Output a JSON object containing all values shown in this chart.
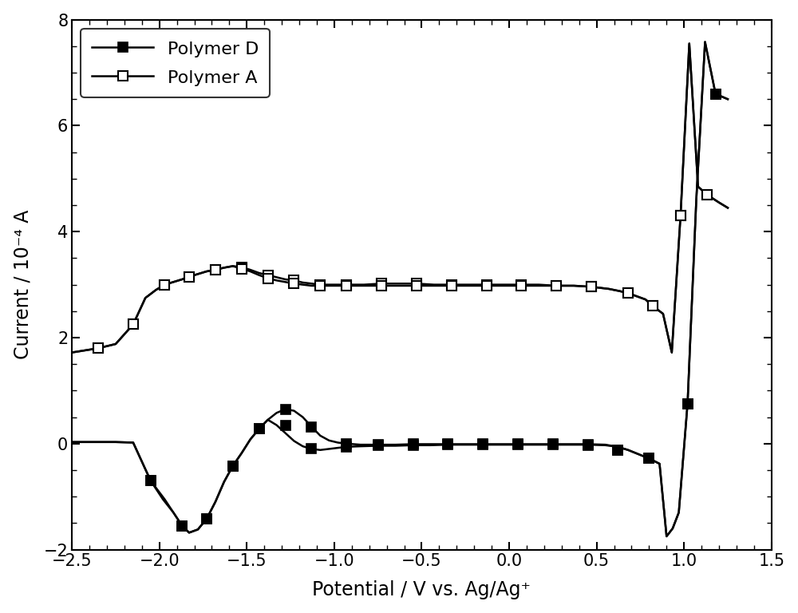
{
  "title": "",
  "xlabel": "Potential / V vs. Ag/Ag⁺",
  "ylabel": "Current / 10⁻⁴ A",
  "xlim": [
    -2.5,
    1.5
  ],
  "ylim": [
    -2,
    8
  ],
  "xticks": [
    -2.5,
    -2.0,
    -1.5,
    -1.0,
    -0.5,
    0.0,
    0.5,
    1.0,
    1.5
  ],
  "yticks": [
    -2,
    0,
    2,
    4,
    6,
    8
  ],
  "line_color": "#000000",
  "background_color": "#ffffff",
  "legend_labels": [
    "Polymer D",
    "Polymer A"
  ],
  "polymer_D_scan1": {
    "x": [
      -2.5,
      -2.25,
      -2.15,
      -2.05,
      -1.98,
      -1.92,
      -1.87,
      -1.83,
      -1.78,
      -1.73,
      -1.68,
      -1.63,
      -1.58,
      -1.53,
      -1.48,
      -1.43,
      -1.38,
      -1.33,
      -1.28,
      -1.23,
      -1.18,
      -1.13,
      -1.08,
      -1.03,
      -0.98,
      -0.93,
      -0.85,
      -0.75,
      -0.65,
      -0.55,
      -0.45,
      -0.35,
      -0.25,
      -0.15,
      -0.05,
      0.05,
      0.15,
      0.25,
      0.35,
      0.45,
      0.55,
      0.62,
      0.68,
      0.74,
      0.8,
      0.86,
      0.9,
      0.935,
      0.97,
      1.02,
      1.07,
      1.12,
      1.18,
      1.25
    ],
    "y": [
      0.03,
      0.03,
      0.02,
      -0.7,
      -1.05,
      -1.3,
      -1.55,
      -1.68,
      -1.62,
      -1.42,
      -1.1,
      -0.72,
      -0.42,
      -0.18,
      0.08,
      0.28,
      0.45,
      0.58,
      0.65,
      0.62,
      0.5,
      0.32,
      0.15,
      0.06,
      0.02,
      0.0,
      -0.02,
      -0.02,
      -0.02,
      -0.01,
      -0.01,
      -0.01,
      -0.01,
      -0.01,
      -0.01,
      -0.01,
      -0.01,
      -0.01,
      -0.01,
      -0.01,
      -0.02,
      -0.06,
      -0.12,
      -0.2,
      -0.28,
      -0.38,
      -1.75,
      -1.6,
      -1.3,
      0.75,
      4.6,
      7.58,
      6.6,
      6.5
    ]
  },
  "polymer_D_scan2": {
    "x": [
      -2.5,
      -2.25,
      -2.15,
      -2.05,
      -1.97,
      -1.92,
      -1.87,
      -1.83,
      -1.78,
      -1.73,
      -1.68,
      -1.63,
      -1.58,
      -1.53,
      -1.48,
      -1.43,
      -1.38,
      -1.33,
      -1.28,
      -1.23,
      -1.18,
      -1.13,
      -1.08,
      -1.03,
      -0.98,
      -0.93,
      -0.85,
      -0.75,
      -0.65,
      -0.55,
      -0.45,
      -0.35,
      -0.25,
      -0.15,
      -0.05,
      0.05,
      0.15,
      0.25,
      0.35,
      0.45,
      0.55,
      0.62,
      0.68,
      0.74,
      0.8,
      0.86,
      0.9,
      0.935,
      0.97,
      1.02,
      1.07,
      1.12,
      1.18,
      1.25
    ],
    "y": [
      0.03,
      0.03,
      0.02,
      -0.7,
      -1.05,
      -1.3,
      -1.55,
      -1.68,
      -1.62,
      -1.42,
      -1.1,
      -0.72,
      -0.42,
      -0.18,
      0.08,
      0.28,
      0.45,
      0.35,
      0.2,
      0.05,
      -0.05,
      -0.1,
      -0.12,
      -0.1,
      -0.08,
      -0.06,
      -0.05,
      -0.04,
      -0.04,
      -0.03,
      -0.03,
      -0.02,
      -0.02,
      -0.02,
      -0.02,
      -0.02,
      -0.02,
      -0.02,
      -0.02,
      -0.02,
      -0.03,
      -0.06,
      -0.12,
      -0.2,
      -0.28,
      -0.38,
      -1.75,
      -1.6,
      -1.3,
      0.75,
      4.6,
      7.58,
      6.6,
      6.5
    ]
  },
  "polymer_D_markers": {
    "x": [
      -2.05,
      -1.87,
      -1.73,
      -1.58,
      -1.43,
      -1.28,
      -1.13,
      -0.93,
      -0.75,
      -0.55,
      -0.35,
      -0.15,
      0.05,
      0.25,
      0.45,
      0.62,
      0.8,
      1.02,
      1.18
    ],
    "y1": [
      -0.7,
      -1.55,
      -1.42,
      -0.42,
      0.28,
      0.65,
      0.32,
      0.0,
      -0.02,
      -0.01,
      -0.01,
      -0.01,
      -0.01,
      -0.01,
      -0.02,
      -0.12,
      -0.28,
      0.75,
      6.6
    ],
    "y2": [
      -0.7,
      -1.55,
      -1.42,
      -0.42,
      0.28,
      0.35,
      -0.1,
      -0.06,
      -0.04,
      -0.03,
      -0.02,
      -0.02,
      -0.02,
      -0.02,
      -0.03,
      -0.12,
      -0.28,
      0.75,
      6.6
    ]
  },
  "polymer_A_scan1": {
    "x": [
      -2.5,
      -2.35,
      -2.25,
      -2.15,
      -2.08,
      -2.02,
      -1.97,
      -1.92,
      -1.87,
      -1.83,
      -1.78,
      -1.73,
      -1.68,
      -1.63,
      -1.58,
      -1.53,
      -1.48,
      -1.43,
      -1.38,
      -1.33,
      -1.28,
      -1.23,
      -1.18,
      -1.13,
      -1.08,
      -1.03,
      -0.93,
      -0.83,
      -0.73,
      -0.63,
      -0.53,
      -0.43,
      -0.33,
      -0.23,
      -0.13,
      -0.03,
      0.07,
      0.17,
      0.27,
      0.37,
      0.47,
      0.57,
      0.63,
      0.68,
      0.73,
      0.78,
      0.82,
      0.88,
      0.93,
      0.98,
      1.03,
      1.08,
      1.13,
      1.2,
      1.25
    ],
    "y": [
      1.72,
      1.8,
      1.88,
      2.25,
      2.75,
      2.9,
      3.0,
      3.05,
      3.1,
      3.15,
      3.2,
      3.25,
      3.28,
      3.32,
      3.35,
      3.33,
      3.28,
      3.22,
      3.18,
      3.14,
      3.1,
      3.08,
      3.04,
      3.02,
      3.0,
      3.0,
      3.0,
      3.0,
      3.02,
      3.02,
      3.02,
      3.0,
      3.0,
      3.0,
      3.0,
      3.0,
      3.0,
      3.0,
      2.98,
      2.98,
      2.96,
      2.92,
      2.88,
      2.84,
      2.78,
      2.72,
      2.6,
      2.45,
      1.72,
      4.3,
      7.55,
      4.85,
      4.7,
      4.55,
      4.45
    ]
  },
  "polymer_A_scan2": {
    "x": [
      -2.5,
      -2.35,
      -2.25,
      -2.15,
      -2.08,
      -2.02,
      -1.97,
      -1.92,
      -1.87,
      -1.83,
      -1.78,
      -1.73,
      -1.68,
      -1.63,
      -1.58,
      -1.53,
      -1.48,
      -1.43,
      -1.38,
      -1.33,
      -1.28,
      -1.23,
      -1.18,
      -1.13,
      -1.08,
      -1.03,
      -0.93,
      -0.83,
      -0.73,
      -0.63,
      -0.53,
      -0.43,
      -0.33,
      -0.23,
      -0.13,
      -0.03,
      0.07,
      0.17,
      0.27,
      0.37,
      0.47,
      0.57,
      0.63,
      0.68,
      0.73,
      0.78,
      0.82,
      0.88,
      0.93,
      0.98,
      1.03,
      1.08,
      1.13,
      1.2,
      1.25
    ],
    "y": [
      1.72,
      1.8,
      1.88,
      2.25,
      2.75,
      2.9,
      3.0,
      3.05,
      3.1,
      3.15,
      3.2,
      3.25,
      3.28,
      3.32,
      3.35,
      3.3,
      3.25,
      3.18,
      3.12,
      3.08,
      3.05,
      3.02,
      3.0,
      2.98,
      2.98,
      2.98,
      2.98,
      2.98,
      2.98,
      2.98,
      2.98,
      2.98,
      2.98,
      2.98,
      2.98,
      2.98,
      2.98,
      2.98,
      2.98,
      2.98,
      2.96,
      2.92,
      2.88,
      2.84,
      2.78,
      2.72,
      2.6,
      2.45,
      1.72,
      4.3,
      7.55,
      4.85,
      4.7,
      4.55,
      4.45
    ]
  },
  "polymer_A_markers": {
    "x": [
      -2.35,
      -2.15,
      -1.97,
      -1.83,
      -1.68,
      -1.53,
      -1.38,
      -1.23,
      -1.08,
      -0.93,
      -0.73,
      -0.53,
      -0.33,
      -0.13,
      0.07,
      0.27,
      0.47,
      0.68,
      0.82,
      0.98,
      1.13
    ],
    "y1": [
      1.8,
      2.25,
      3.0,
      3.15,
      3.28,
      3.33,
      3.18,
      3.08,
      3.0,
      3.0,
      3.02,
      3.02,
      3.0,
      3.0,
      3.0,
      2.98,
      2.96,
      2.84,
      2.6,
      4.3,
      4.7
    ],
    "y2": [
      1.8,
      2.25,
      3.0,
      3.15,
      3.28,
      3.3,
      3.12,
      3.02,
      2.98,
      2.98,
      2.98,
      2.98,
      2.98,
      2.98,
      2.98,
      2.98,
      2.96,
      2.84,
      2.6,
      4.3,
      4.7
    ]
  }
}
